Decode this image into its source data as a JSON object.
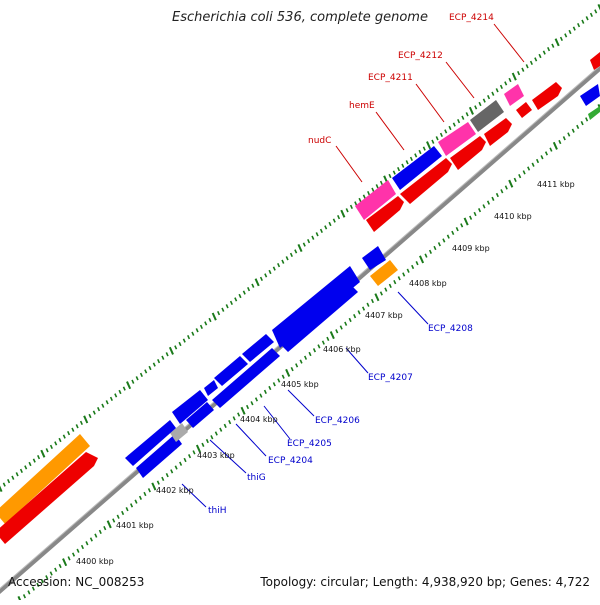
{
  "title": "Escherichia coli 536, complete genome",
  "footer": {
    "accession": "Accession: NC_008253",
    "topology": "Topology: circular; Length: 4,938,920 bp; Genes: 4,722"
  },
  "colors": {
    "forward_gene": "#ff0000",
    "reverse_gene": "#0000ff",
    "pink_gene": "#ff33aa",
    "orange_gene": "#ff9900",
    "gray_gene": "#777777",
    "backbone": "#888888",
    "tick": "#1a7a1a",
    "forward_label": "#cc0000",
    "reverse_label": "#0000cc"
  },
  "scale_labels": [
    "4400 kbp",
    "4401 kbp",
    "4402 kbp",
    "4403 kbp",
    "4404 kbp",
    "4405 kbp",
    "4406 kbp",
    "4407 kbp",
    "4408 kbp",
    "4409 kbp",
    "4410 kbp",
    "4411 kbp"
  ],
  "forward_labels": [
    "nudC",
    "hemE",
    "ECP_4211",
    "ECP_4212",
    "ECP_4214"
  ],
  "reverse_labels": [
    "thiH",
    "thiG",
    "ECP_4204",
    "ECP_4205",
    "ECP_4206",
    "ECP_4207",
    "ECP_4208"
  ]
}
